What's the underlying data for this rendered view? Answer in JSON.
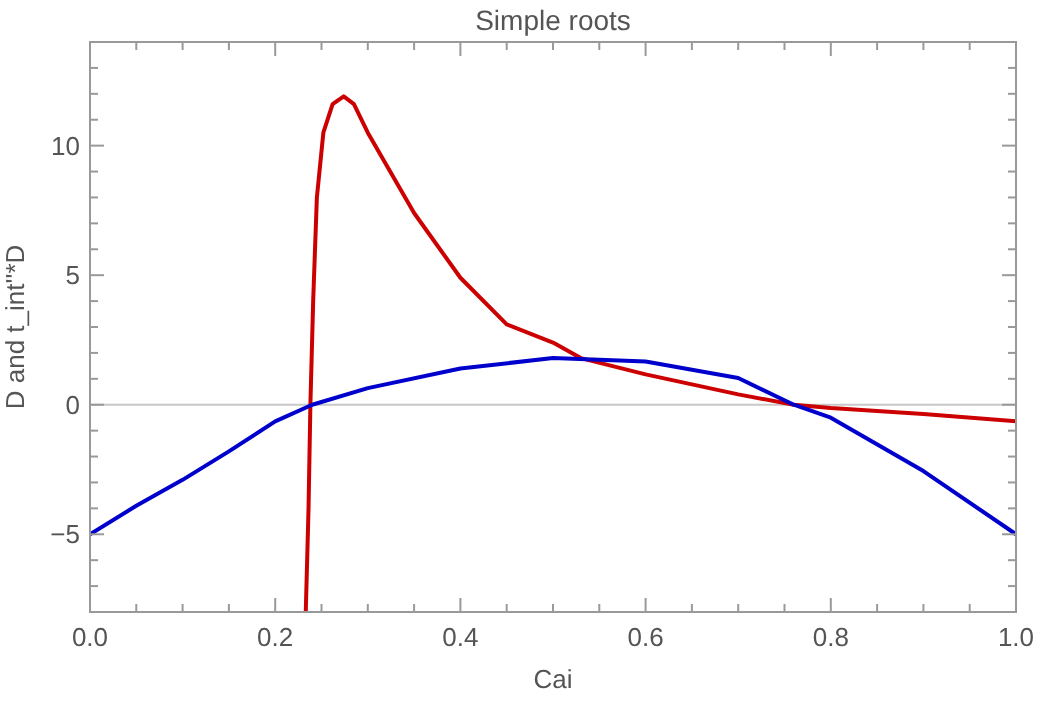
{
  "chart_data": {
    "type": "line",
    "title": "Simple roots",
    "xlabel": "Cai",
    "ylabel": "D and t_int''*D",
    "xlim": [
      0,
      1
    ],
    "ylim": [
      -8,
      14
    ],
    "xticks": [
      {
        "value": 0,
        "label": "0.0"
      },
      {
        "value": 0.05,
        "label": null
      },
      {
        "value": 0.1,
        "label": null
      },
      {
        "value": 0.15,
        "label": null
      },
      {
        "value": 0.2,
        "label": "0.2"
      },
      {
        "value": 0.25,
        "label": null
      },
      {
        "value": 0.3,
        "label": null
      },
      {
        "value": 0.35,
        "label": null
      },
      {
        "value": 0.4,
        "label": "0.4"
      },
      {
        "value": 0.45,
        "label": null
      },
      {
        "value": 0.5,
        "label": null
      },
      {
        "value": 0.55,
        "label": null
      },
      {
        "value": 0.6,
        "label": "0.6"
      },
      {
        "value": 0.65,
        "label": null
      },
      {
        "value": 0.7,
        "label": null
      },
      {
        "value": 0.75,
        "label": null
      },
      {
        "value": 0.8,
        "label": "0.8"
      },
      {
        "value": 0.85,
        "label": null
      },
      {
        "value": 0.9,
        "label": null
      },
      {
        "value": 0.95,
        "label": null
      },
      {
        "value": 1,
        "label": "1.0"
      }
    ],
    "yticks": [
      {
        "value": -7,
        "label": null
      },
      {
        "value": -6,
        "label": null
      },
      -5,
      {
        "value": -4,
        "label": null
      },
      {
        "value": -3,
        "label": null
      },
      {
        "value": -2,
        "label": null
      },
      {
        "value": -1,
        "label": null
      },
      0,
      {
        "value": 1,
        "label": null
      },
      {
        "value": 2,
        "label": null
      },
      {
        "value": 3,
        "label": null
      },
      {
        "value": 4,
        "label": null
      },
      5,
      {
        "value": 6,
        "label": null
      },
      {
        "value": 7,
        "label": null
      },
      {
        "value": 8,
        "label": null
      },
      {
        "value": 9,
        "label": null
      },
      10,
      {
        "value": 11,
        "label": null
      },
      {
        "value": 12,
        "label": null
      },
      {
        "value": 13,
        "label": null
      }
    ],
    "grid": false,
    "line_style": "solid",
    "marker": "none",
    "ref_lines": [
      {
        "axis": "y",
        "value": 0,
        "color": "#c8c8c8"
      }
    ],
    "series": [
      {
        "color": "#cc0000",
        "x": [
          0.233,
          0.236,
          0.238,
          0.241,
          0.245,
          0.252,
          0.262,
          0.274,
          0.285,
          0.3,
          0.35,
          0.4,
          0.45,
          0.5,
          0.53,
          0.6,
          0.7,
          0.76,
          0.8,
          0.9,
          1.0
        ],
        "values": [
          -8,
          -4,
          0,
          4,
          8,
          10.5,
          11.6,
          11.9,
          11.6,
          10.5,
          7.4,
          4.9,
          3.1,
          2.4,
          1.8,
          1.17,
          0.4,
          0,
          -0.13,
          -0.36,
          -0.64
        ]
      },
      {
        "color": "#0000cc",
        "x": [
          0,
          0.05,
          0.1,
          0.15,
          0.2,
          0.24,
          0.3,
          0.4,
          0.5,
          0.6,
          0.7,
          0.76,
          0.8,
          0.9,
          1.0
        ],
        "values": [
          -5,
          -3.9,
          -2.9,
          -1.8,
          -0.64,
          0,
          0.64,
          1.4,
          1.8,
          1.67,
          1.03,
          0,
          -0.5,
          -2.56,
          -5
        ]
      }
    ]
  }
}
